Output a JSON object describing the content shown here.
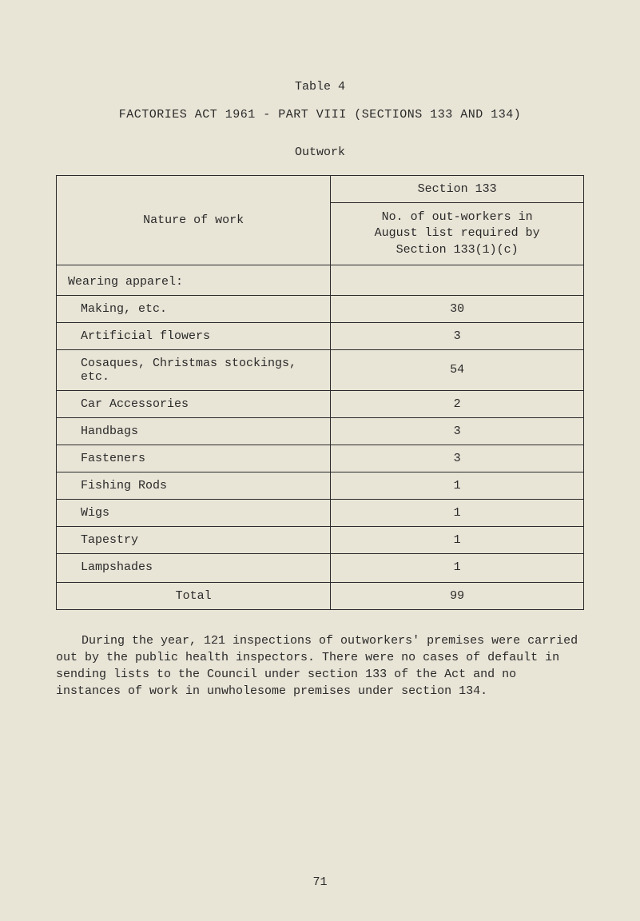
{
  "page": {
    "background_color": "#e8e4d6",
    "text_color": "#2a2a2a",
    "font_family": "Courier New",
    "base_fontsize": 15
  },
  "header": {
    "table_label": "Table 4",
    "title": "FACTORIES ACT 1961 - PART VIII (SECTIONS 133 AND 134)",
    "subtitle": "Outwork"
  },
  "table": {
    "border_color": "#2a2a2a",
    "border_width": 1.5,
    "columns": {
      "nature": "Nature of work",
      "section_header": "Section 133",
      "section_sub_line1": "No. of out-workers in",
      "section_sub_line2": "August list required by",
      "section_sub_line3": "Section 133(1)(c)"
    },
    "section_head": "Wearing apparel:",
    "rows": [
      {
        "label": "Making, etc.",
        "value": "30"
      },
      {
        "label": "Artificial flowers",
        "value": "3"
      },
      {
        "label": "Cosaques, Christmas stockings, etc.",
        "value": "54"
      },
      {
        "label": "Car Accessories",
        "value": "2"
      },
      {
        "label": "Handbags",
        "value": "3"
      },
      {
        "label": "Fasteners",
        "value": "3"
      },
      {
        "label": "Fishing Rods",
        "value": "1"
      },
      {
        "label": "Wigs",
        "value": "1"
      },
      {
        "label": "Tapestry",
        "value": "1"
      },
      {
        "label": "Lampshades",
        "value": "1"
      }
    ],
    "total_label": "Total",
    "total_value": "99"
  },
  "paragraph": "During the year, 121 inspections of outworkers' premises were carried out by the public health inspectors.  There were no cases of default in sending lists to the Council under section 133 of the Act and no instances of work in unwholesome premises under section 134.",
  "page_number": "71"
}
